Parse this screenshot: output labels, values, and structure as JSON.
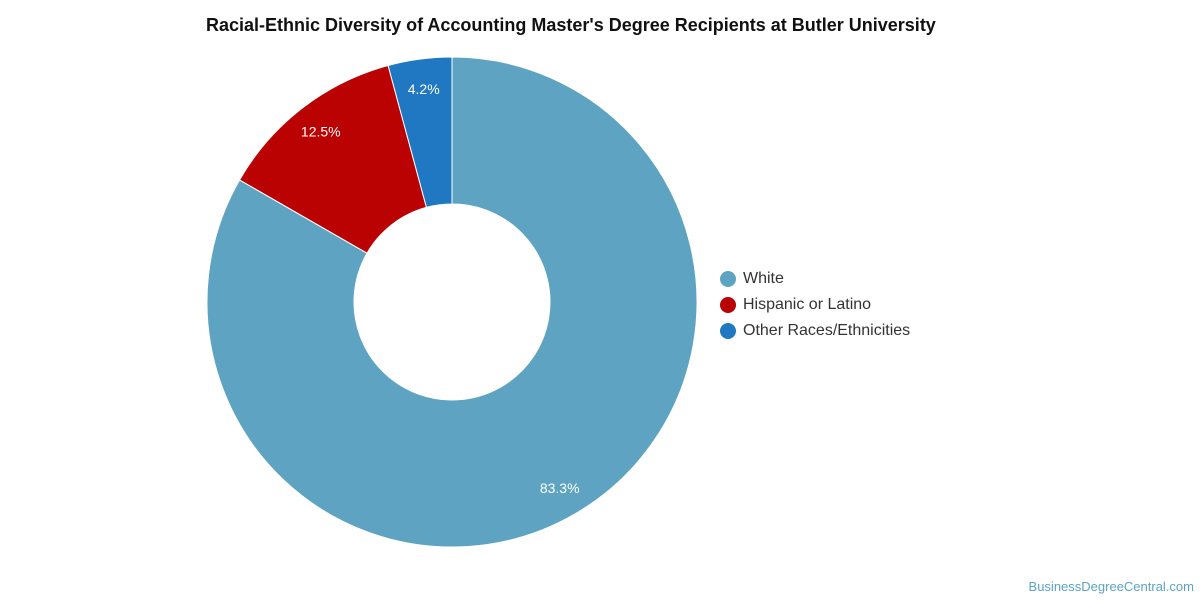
{
  "chart_data": {
    "type": "pie",
    "title": "Racial-Ethnic Diversity of Accounting Master's Degree Recipients at Butler University",
    "donut": true,
    "legend_position": "right",
    "slices": [
      {
        "label": "White",
        "value": 83.3,
        "display": "83.3%",
        "color": "#5ea3c1"
      },
      {
        "label": "Hispanic or Latino",
        "value": 12.5,
        "display": "12.5%",
        "color": "#bb0202"
      },
      {
        "label": "Other Races/Ethnicities",
        "value": 4.2,
        "display": "4.2%",
        "color": "#1f78c1"
      }
    ]
  },
  "watermark": "BusinessDegreeCentral.com"
}
